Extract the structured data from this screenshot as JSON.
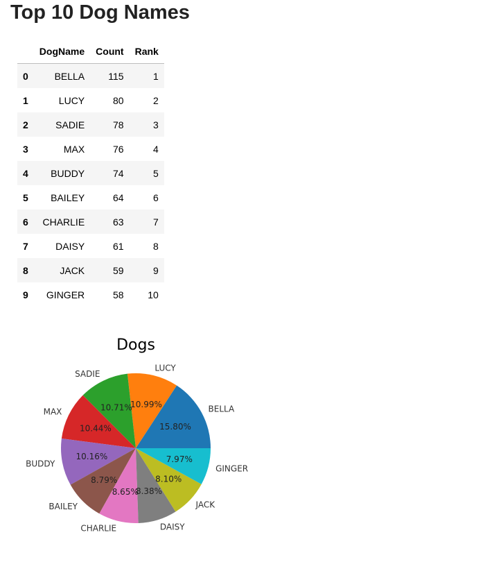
{
  "page": {
    "title": "Top 10 Dog Names"
  },
  "table": {
    "index_header": "",
    "columns": [
      "DogName",
      "Count",
      "Rank"
    ],
    "rows": [
      {
        "index": "0",
        "DogName": "BELLA",
        "Count": "115",
        "Rank": "1"
      },
      {
        "index": "1",
        "DogName": "LUCY",
        "Count": "80",
        "Rank": "2"
      },
      {
        "index": "2",
        "DogName": "SADIE",
        "Count": "78",
        "Rank": "3"
      },
      {
        "index": "3",
        "DogName": "MAX",
        "Count": "76",
        "Rank": "4"
      },
      {
        "index": "4",
        "DogName": "BUDDY",
        "Count": "74",
        "Rank": "5"
      },
      {
        "index": "5",
        "DogName": "BAILEY",
        "Count": "64",
        "Rank": "6"
      },
      {
        "index": "6",
        "DogName": "CHARLIE",
        "Count": "63",
        "Rank": "7"
      },
      {
        "index": "7",
        "DogName": "DAISY",
        "Count": "61",
        "Rank": "8"
      },
      {
        "index": "8",
        "DogName": "JACK",
        "Count": "59",
        "Rank": "9"
      },
      {
        "index": "9",
        "DogName": "GINGER",
        "Count": "58",
        "Rank": "10"
      }
    ]
  },
  "chart_data": {
    "type": "pie",
    "title": "Dogs",
    "categories": [
      "BELLA",
      "LUCY",
      "SADIE",
      "MAX",
      "BUDDY",
      "BAILEY",
      "CHARLIE",
      "DAISY",
      "JACK",
      "GINGER"
    ],
    "values": [
      115,
      80,
      78,
      76,
      74,
      64,
      63,
      61,
      59,
      58
    ],
    "percent_labels": [
      "15.80%",
      "10.99%",
      "10.71%",
      "10.44%",
      "10.16%",
      "8.79%",
      "8.65%",
      "8.38%",
      "8.10%",
      "7.97%"
    ],
    "colors": [
      "#1f77b4",
      "#ff7f0e",
      "#2ca02c",
      "#d62728",
      "#9467bd",
      "#8c564b",
      "#e377c2",
      "#7f7f7f",
      "#bcbd22",
      "#17becf"
    ],
    "start_angle": 0,
    "direction": "counterclockwise",
    "legend": "none"
  }
}
